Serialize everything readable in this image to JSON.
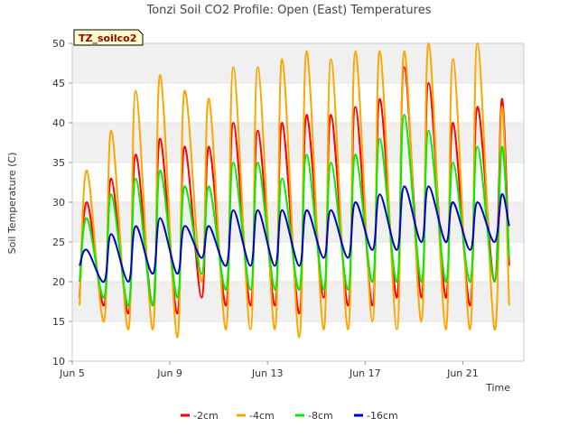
{
  "chart_data": {
    "type": "line",
    "title": "Tonzi Soil CO2 Profile: Open (East) Temperatures",
    "xlabel": "Time",
    "ylabel": "Soil Temperature (C)",
    "ylim": [
      10,
      50
    ],
    "yticks": [
      10,
      15,
      20,
      25,
      30,
      35,
      40,
      45,
      50
    ],
    "xlim_days": [
      5,
      23.5
    ],
    "xticks": [
      {
        "label": "Jun 5",
        "day": 5
      },
      {
        "label": "Jun 9",
        "day": 9
      },
      {
        "label": "Jun 13",
        "day": 13
      },
      {
        "label": "Jun 17",
        "day": 17
      },
      {
        "label": "Jun 21",
        "day": 21
      }
    ],
    "grid": "horizontal bands",
    "legend_position": "bottom",
    "annotation": "TZ_soilco2",
    "days": [
      5.3,
      5.6,
      6.3,
      6.6,
      7.3,
      7.6,
      8.3,
      8.6,
      9.3,
      9.6,
      10.3,
      10.6,
      11.3,
      11.6,
      12.3,
      12.6,
      13.3,
      13.6,
      14.3,
      14.6,
      15.3,
      15.6,
      16.3,
      16.6,
      17.3,
      17.6,
      18.3,
      18.6,
      19.3,
      19.6,
      20.3,
      20.6,
      21.3,
      21.6,
      22.3,
      22.6,
      22.9
    ],
    "series": [
      {
        "name": "-2cm",
        "color": "#ff0000",
        "values": [
          18,
          30,
          17,
          33,
          16,
          36,
          17,
          38,
          16,
          37,
          18,
          37,
          17,
          40,
          17,
          39,
          17,
          40,
          16,
          41,
          18,
          41,
          17,
          42,
          17,
          43,
          18,
          47,
          18,
          45,
          18,
          40,
          17,
          42,
          20,
          43,
          22
        ]
      },
      {
        "name": "-4cm",
        "color": "#ffa500",
        "values": [
          17,
          34,
          15,
          39,
          14,
          44,
          14,
          46,
          13,
          44,
          20,
          43,
          14,
          47,
          14,
          47,
          14,
          48,
          13,
          49,
          14,
          48,
          14,
          49,
          15,
          49,
          14,
          49,
          15,
          50,
          14,
          48,
          14,
          50,
          14,
          42,
          17
        ]
      },
      {
        "name": "-8cm",
        "color": "#00ee00",
        "values": [
          20,
          28,
          18,
          31,
          17,
          33,
          17,
          34,
          18,
          32,
          21,
          32,
          19,
          35,
          19,
          35,
          19,
          33,
          19,
          36,
          19,
          35,
          19,
          36,
          20,
          38,
          20,
          41,
          20,
          39,
          20,
          35,
          20,
          37,
          20,
          37,
          23
        ]
      },
      {
        "name": "-16cm",
        "color": "#0000cc",
        "values": [
          22,
          24,
          20,
          26,
          20,
          27,
          21,
          28,
          21,
          27,
          23,
          27,
          22,
          29,
          22,
          29,
          22,
          29,
          22,
          29,
          23,
          29,
          23,
          30,
          24,
          31,
          24,
          32,
          25,
          32,
          25,
          30,
          24,
          30,
          25,
          31,
          27
        ]
      }
    ]
  }
}
